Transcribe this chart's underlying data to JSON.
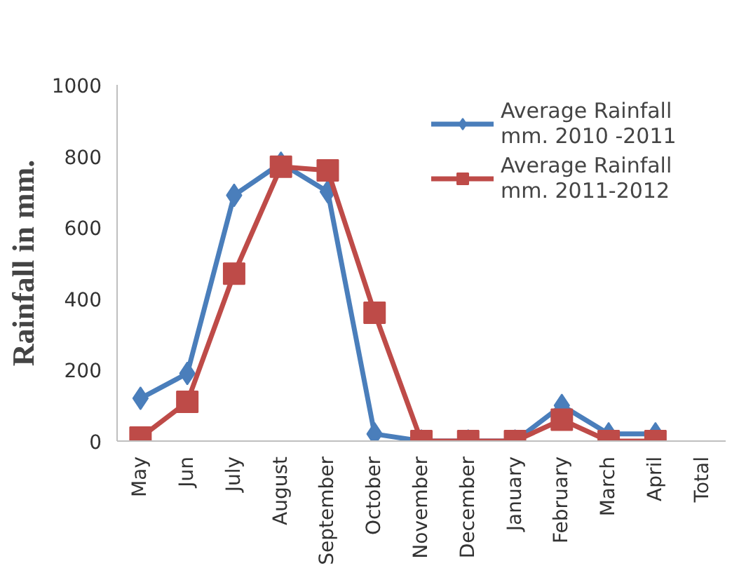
{
  "chart_data": {
    "type": "line",
    "ylabel": "Rainfall in mm.",
    "categories": [
      "May",
      "Jun",
      "July",
      "August",
      "September",
      "October",
      "November",
      "December",
      "January",
      "February",
      "March",
      "April",
      "Total"
    ],
    "ylim": [
      0,
      1000
    ],
    "yticks": [
      0,
      200,
      400,
      600,
      800,
      1000
    ],
    "grid": false,
    "legend": "top right",
    "line_style": "solid",
    "series": [
      {
        "name": "Average Rainfall mm. 2010 -2011",
        "color": "#4a7ebb",
        "marker": "diamond",
        "values": [
          120,
          190,
          690,
          780,
          700,
          20,
          0,
          0,
          0,
          100,
          20,
          20,
          null
        ]
      },
      {
        "name": "Average Rainfall mm. 2011-2012",
        "color": "#be4b48",
        "marker": "square",
        "values": [
          10,
          110,
          470,
          770,
          760,
          360,
          0,
          0,
          0,
          60,
          0,
          0,
          null
        ]
      }
    ]
  }
}
